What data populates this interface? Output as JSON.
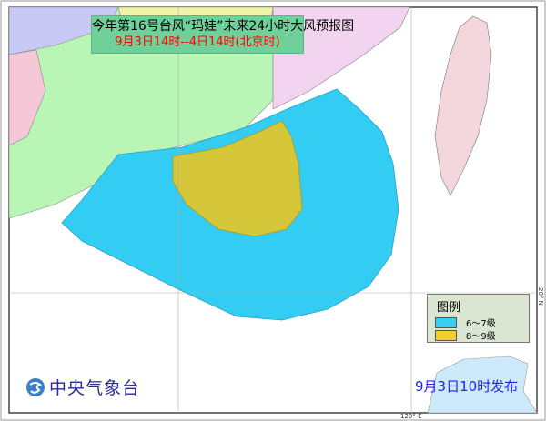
{
  "header": {
    "title": "今年第16号台风“玛娃”未来24小时大风预报图",
    "subtitle": "9月3日14时--4日14时(北京时)"
  },
  "legend": {
    "title": "图例",
    "items": [
      {
        "label": "6～7级",
        "color": "#33d1f5"
      },
      {
        "label": "8～9级",
        "color": "#f2cf2a"
      }
    ]
  },
  "footer": {
    "agency": "中央气象台",
    "issued": "9月3日10时发布"
  },
  "grid": {
    "lat_label": "20° N",
    "lon_label": "120° E"
  },
  "colors": {
    "land": "#b9f5b4",
    "taiwan": "#f4d6dd",
    "zone_6_7": "#33ccf2",
    "zone_8_9": "#d6c63a",
    "title_bg": "#6fd09a"
  }
}
